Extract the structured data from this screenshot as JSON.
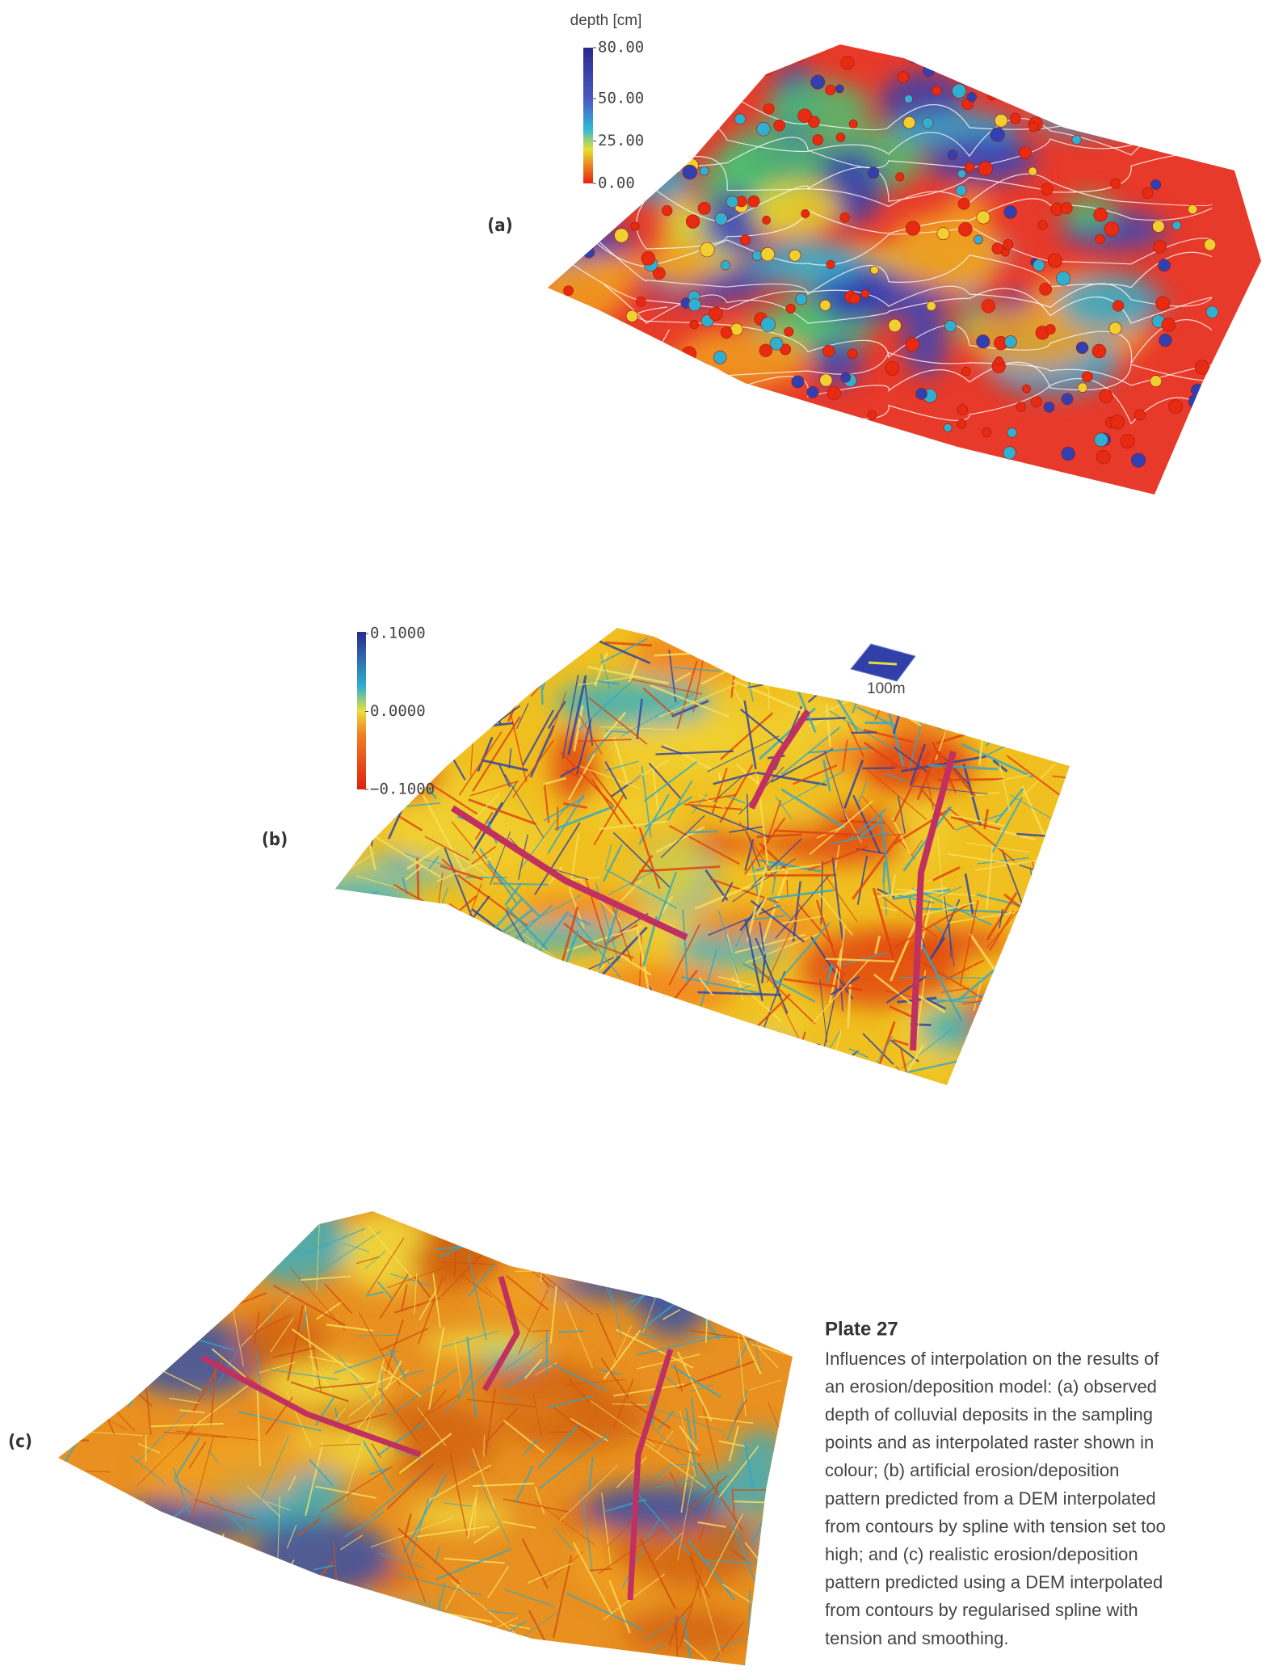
{
  "panels": [
    {
      "label": "(a)",
      "colorbar": {
        "title": "depth [cm]",
        "lim": [
          0,
          80
        ],
        "ticks": [
          {
            "value": 80,
            "label": "80.00"
          },
          {
            "value": 50,
            "label": "50.00"
          },
          {
            "value": 25,
            "label": "25.00"
          },
          {
            "value": 0,
            "label": "0.00"
          }
        ]
      }
    },
    {
      "label": "(b)",
      "colorbar": {
        "lim": [
          -0.1,
          0.1
        ],
        "ticks": [
          {
            "value": 0.1,
            "label": "0.1000"
          },
          {
            "value": 0,
            "label": "0.0000"
          },
          {
            "value": -0.1,
            "label": "−0.1000"
          }
        ]
      },
      "scale_bar": "100m"
    },
    {
      "label": "(c)"
    }
  ],
  "caption": {
    "title": "Plate 27",
    "lines": [
      "Influences of interpolation on the results of",
      "an erosion/deposition model: (a) observed",
      "depth of colluvial deposits in the sampling",
      "points and as interpolated raster shown in",
      "colour; (b) artificial erosion/deposition",
      "pattern predicted from a DEM interpolated",
      "from contours by spline with tension set too",
      "high; and (c) realistic erosion/deposition",
      "pattern predicted using a DEM interpolated",
      "from contours by regularised spline with",
      "tension and smoothing."
    ]
  }
}
